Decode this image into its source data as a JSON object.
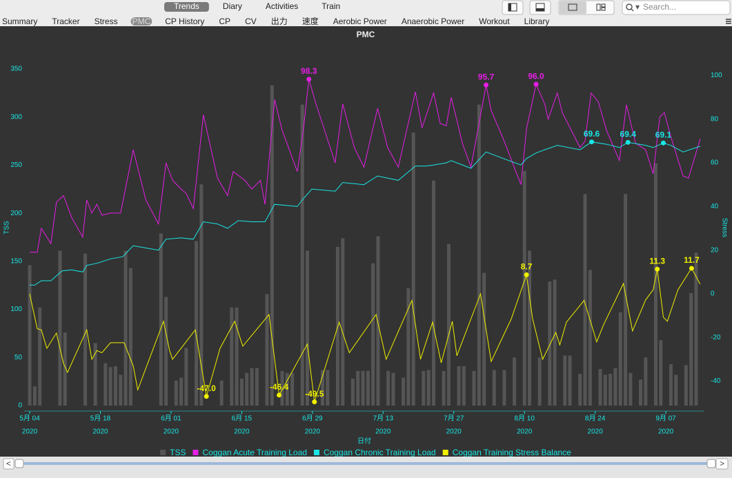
{
  "views": [
    "Trends",
    "Diary",
    "Activities",
    "Train"
  ],
  "active_view": "Trends",
  "search_placeholder": "Search...",
  "tabs": [
    "Summary",
    "Tracker",
    "Stress",
    "PMC",
    "CP History",
    "CP",
    "CV",
    "出力",
    "速度",
    "Aerobic Power",
    "Anaerobic Power",
    "Workout",
    "Library"
  ],
  "active_tab": "PMC",
  "chart_data": {
    "type": "combo",
    "title": "PMC",
    "x_label": "日付",
    "y_label": "TSS",
    "y2_label": "Stress",
    "legend": "bottom",
    "grid": false,
    "xlim": [
      -1.1,
      133.5
    ],
    "xticks": [
      {
        "value": 0,
        "label": "5月 04"
      },
      {
        "value": 14,
        "label": "5月 18"
      },
      {
        "value": 28,
        "label": "6月 01"
      },
      {
        "value": 42,
        "label": "6月 15"
      },
      {
        "value": 56,
        "label": "6月 29"
      },
      {
        "value": 70,
        "label": "7月 13"
      },
      {
        "value": 84,
        "label": "7月 27"
      },
      {
        "value": 98,
        "label": "8月 10"
      },
      {
        "value": 112,
        "label": "8月 24"
      },
      {
        "value": 126,
        "label": "9月 07"
      }
    ],
    "xtick_years": [
      "2020",
      "2020",
      "2020",
      "2020",
      "2020",
      "2020",
      "2020",
      "2020",
      "2020",
      "2020"
    ],
    "ylim": [
      0,
      350
    ],
    "yticks": [
      0,
      50,
      100,
      150,
      200,
      250,
      300,
      350
    ],
    "y2lim": [
      -51.2,
      103
    ],
    "y2ticks": [
      -40,
      -20,
      0,
      20,
      40,
      60,
      80,
      100
    ],
    "series": [
      {
        "name": "TSS",
        "type": "bar",
        "axis": "y",
        "color": "#555555",
        "x": [
          0,
          1,
          2,
          6,
          7,
          11,
          13,
          15,
          16,
          17,
          18,
          19,
          20,
          26,
          27,
          29,
          30,
          31,
          33,
          34,
          38,
          40,
          41,
          42,
          43,
          44,
          45,
          47,
          48,
          50,
          51,
          52,
          54,
          55,
          58,
          59,
          61,
          62,
          64,
          65,
          66,
          67,
          68,
          69,
          71,
          72,
          74,
          75,
          76,
          78,
          79,
          80,
          82,
          83,
          85,
          86,
          88,
          89,
          90,
          92,
          94,
          96,
          98,
          99,
          101,
          103,
          104,
          106,
          107,
          109,
          110,
          111,
          113,
          114,
          115,
          116,
          117,
          118,
          119,
          121,
          122,
          124,
          125,
          127,
          128,
          130,
          131,
          132
        ],
        "values": [
          146,
          20,
          102,
          161,
          76,
          158,
          65,
          44,
          40,
          41,
          32,
          161,
          143,
          179,
          113,
          26,
          29,
          60,
          171,
          230,
          26,
          102,
          102,
          28,
          34,
          39,
          39,
          116,
          333,
          36,
          34,
          34,
          313,
          161,
          37,
          37,
          165,
          174,
          28,
          36,
          36,
          36,
          148,
          176,
          36,
          34,
          29,
          122,
          284,
          36,
          37,
          234,
          36,
          168,
          41,
          41,
          36,
          313,
          138,
          37,
          37,
          50,
          244,
          161,
          50,
          129,
          131,
          52,
          52,
          33,
          220,
          141,
          38,
          32,
          33,
          39,
          97,
          220,
          34,
          27,
          50,
          252,
          68,
          43,
          32,
          42,
          117,
          159
        ]
      },
      {
        "name": "Coggan Acute Training Load",
        "type": "line",
        "axis": "y2",
        "color": "#e61ee6",
        "x": [
          0,
          1.5,
          2.3,
          4.2,
          5.3,
          6.7,
          8.3,
          10.5,
          11.3,
          12.3,
          13.3,
          14.3,
          16,
          18,
          20.5,
          23,
          25.5,
          27,
          28.3,
          30,
          31,
          32.4,
          34.4,
          37.2,
          39.2,
          40.3,
          42.6,
          44,
          45.7,
          46.6,
          48.5,
          50,
          53,
          54.2,
          55.3,
          56.7,
          60.5,
          62,
          64.3,
          66.2,
          68.9,
          70.9,
          73,
          76.4,
          77.7,
          80,
          81.3,
          82.5,
          83.5,
          85.7,
          87.4,
          90.4,
          91.4,
          93.8,
          97.3,
          98.4,
          100.3,
          102,
          102.7,
          104.5,
          105.5,
          109,
          110,
          111.2,
          112.6,
          114.3,
          116.8,
          118.2,
          120,
          122,
          123.5,
          124.8,
          125.7,
          127,
          129.4,
          130.5,
          132.8
        ],
        "values": [
          19,
          19,
          30,
          23,
          42,
          45,
          35,
          26,
          43,
          37,
          41,
          36,
          37,
          37,
          66,
          43,
          32,
          60,
          52,
          48,
          46,
          39,
          82,
          53,
          45,
          56,
          52,
          48,
          52,
          41,
          89,
          75,
          56,
          75,
          98.3,
          87,
          60,
          87,
          67,
          58,
          85,
          67,
          58,
          92.5,
          76,
          92,
          78,
          77,
          90,
          69,
          58,
          95.7,
          84,
          71,
          50,
          75.5,
          96,
          87,
          80,
          92,
          83,
          67,
          70,
          92,
          88,
          74.6,
          61,
          86.6,
          69,
          66,
          55,
          81,
          83,
          72,
          54,
          53,
          71
        ],
        "value_labels": [
          null,
          null,
          null,
          null,
          null,
          null,
          null,
          null,
          null,
          null,
          null,
          null,
          null,
          null,
          null,
          null,
          null,
          null,
          null,
          null,
          null,
          null,
          null,
          null,
          null,
          null,
          null,
          null,
          null,
          null,
          null,
          null,
          null,
          null,
          "98.3",
          null,
          null,
          null,
          null,
          null,
          null,
          null,
          null,
          null,
          null,
          null,
          null,
          null,
          null,
          null,
          null,
          "95.7",
          null,
          null,
          null,
          null,
          "96.0",
          null,
          null,
          null,
          null,
          null,
          null,
          null,
          null,
          null,
          null,
          null,
          null,
          null,
          null,
          null,
          null,
          null,
          null,
          null,
          null
        ]
      },
      {
        "name": "Coggan Chronic Training Load",
        "type": "line",
        "axis": "y2",
        "color": "#19e6e6",
        "x": [
          0,
          1,
          2.3,
          4.2,
          6.4,
          8.3,
          10.5,
          11.3,
          13.3,
          16,
          18.4,
          20.5,
          23,
          25.5,
          27,
          30,
          32.4,
          34.4,
          37.2,
          39.2,
          41.3,
          44,
          46.6,
          48.5,
          53,
          54.2,
          55.9,
          60.5,
          62,
          66.2,
          68.9,
          70.9,
          73,
          76.4,
          78.5,
          80,
          82.5,
          83.5,
          87.4,
          90.4,
          93.8,
          97.3,
          98.4,
          100.3,
          102,
          104.5,
          109,
          111.3,
          114.3,
          116.8,
          118.5,
          122,
          123.5,
          125.5,
          127,
          129.4,
          132.8
        ],
        "values": [
          4,
          4,
          6,
          6,
          10.5,
          11,
          10,
          13,
          14,
          16,
          17,
          22,
          21,
          20,
          25,
          25.6,
          25,
          33,
          32,
          30,
          33.5,
          33,
          33,
          41,
          40,
          43.6,
          48,
          47,
          51,
          50,
          54,
          53,
          52,
          58.5,
          58.5,
          59,
          60,
          61,
          57.5,
          65,
          62,
          59,
          62,
          64.5,
          66,
          68,
          66,
          69.6,
          68.5,
          67,
          69.4,
          68,
          67,
          69.1,
          68,
          65,
          67.6
        ],
        "value_labels": [
          null,
          null,
          null,
          null,
          null,
          null,
          null,
          null,
          null,
          null,
          null,
          null,
          null,
          null,
          null,
          null,
          null,
          null,
          null,
          null,
          null,
          null,
          null,
          null,
          null,
          null,
          null,
          null,
          null,
          null,
          null,
          null,
          null,
          null,
          null,
          null,
          null,
          null,
          null,
          null,
          null,
          null,
          null,
          null,
          null,
          null,
          null,
          "69.6",
          null,
          null,
          "69.4",
          null,
          null,
          "69.1",
          null,
          null,
          null
        ]
      },
      {
        "name": "Coggan Training Stress Balance",
        "type": "line",
        "axis": "y2",
        "color": "#f0f000",
        "x": [
          0,
          1.5,
          2.3,
          3.4,
          5.3,
          6.7,
          7.5,
          11.3,
          12.3,
          13.3,
          14.3,
          16,
          18.7,
          20.5,
          21.4,
          26.5,
          27.7,
          28.3,
          32.8,
          35,
          37.7,
          40.6,
          42.2,
          47.4,
          49.4,
          55,
          56.4,
          61.3,
          63.3,
          68.6,
          70.6,
          75.7,
          77.4,
          79.8,
          81.5,
          83.7,
          84.6,
          89.3,
          91.4,
          95.4,
          98.4,
          99.6,
          101.6,
          104.2,
          105,
          106.3,
          109.8,
          112.3,
          113.7,
          117.6,
          119.4,
          122,
          123.5,
          124.3,
          125.5,
          126.3,
          128.4,
          131.1,
          132.8
        ],
        "values": [
          0,
          -16,
          -16.5,
          -25,
          -18,
          -32,
          -36,
          -16.5,
          -30,
          -26,
          -27,
          -22.4,
          -22.4,
          -33,
          -44,
          -12.6,
          -26,
          -30,
          -16.5,
          -47,
          -25,
          -12.6,
          -24,
          -9.5,
          -46.4,
          -23,
          -49.5,
          -13,
          -27,
          -9.5,
          -30,
          -3,
          -30,
          -13,
          -31.6,
          -12.6,
          -28.4,
          0,
          -31,
          -11.4,
          8.7,
          -11.4,
          -30,
          -17.7,
          -23.4,
          -13,
          -3,
          -22,
          -14,
          4.7,
          -17,
          -2.8,
          1.9,
          11.3,
          -10.7,
          -12.6,
          1.9,
          11.7,
          4.4
        ],
        "value_labels": [
          null,
          null,
          null,
          null,
          null,
          null,
          null,
          null,
          null,
          null,
          null,
          null,
          null,
          null,
          null,
          null,
          null,
          null,
          null,
          "-47.0",
          null,
          null,
          null,
          null,
          "-46.4",
          null,
          "-49.5",
          null,
          null,
          null,
          null,
          null,
          null,
          null,
          null,
          null,
          null,
          null,
          null,
          null,
          "8.7",
          null,
          null,
          null,
          null,
          null,
          null,
          null,
          null,
          null,
          null,
          null,
          null,
          "11.3",
          null,
          null,
          null,
          "11.7",
          null
        ]
      }
    ]
  }
}
